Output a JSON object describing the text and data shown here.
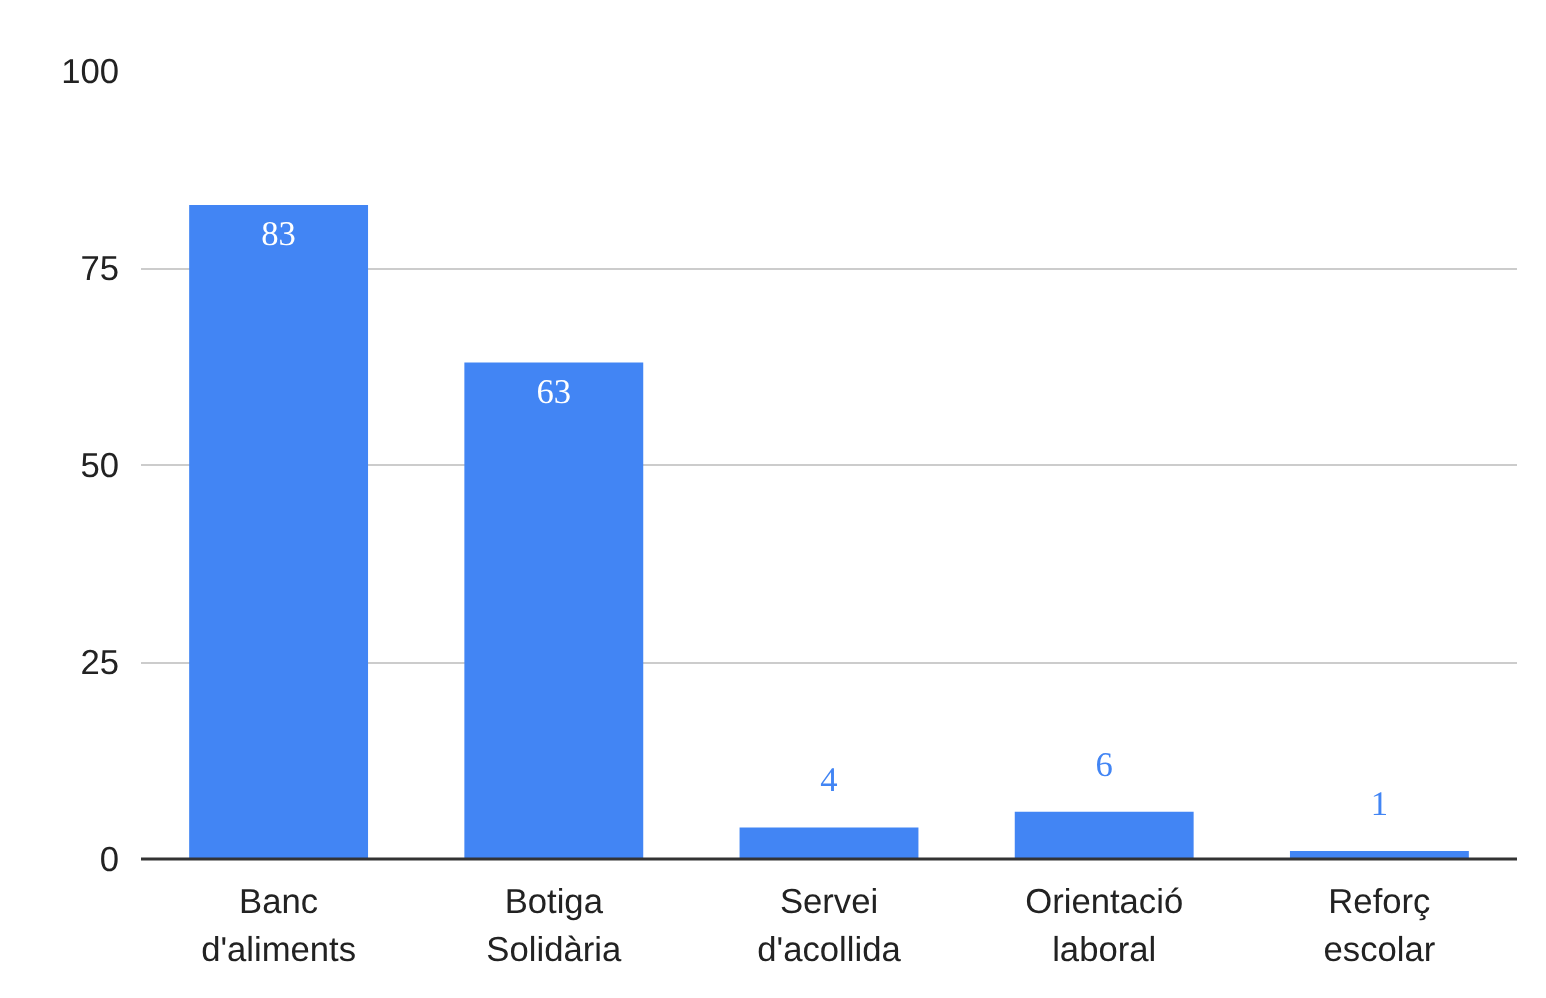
{
  "chart_data": {
    "type": "bar",
    "categories": [
      "Banc\nd'aliments",
      "Botiga\nSolidària",
      "Servei\nd'acollida",
      "Orientació\nlaboral",
      "Reforç\nescolar"
    ],
    "values": [
      83,
      63,
      4,
      6,
      1
    ],
    "color": "#4285f4",
    "ylim": [
      0,
      100
    ],
    "yticks": [
      0,
      25,
      50,
      75,
      100
    ],
    "grid": "y",
    "data_labels": true
  }
}
